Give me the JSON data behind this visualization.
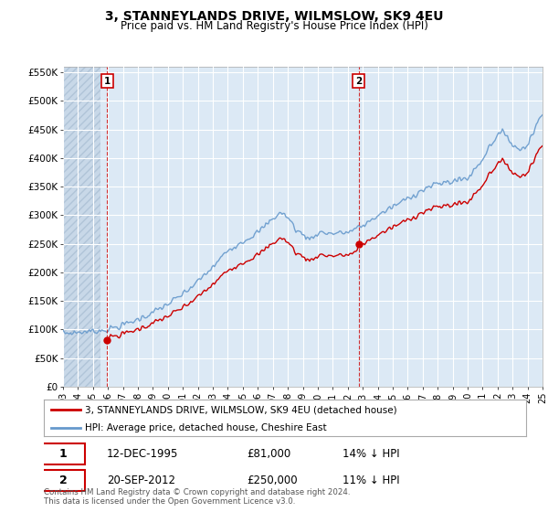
{
  "title": "3, STANNEYLANDS DRIVE, WILMSLOW, SK9 4EU",
  "subtitle": "Price paid vs. HM Land Registry's House Price Index (HPI)",
  "legend_label_red": "3, STANNEYLANDS DRIVE, WILMSLOW, SK9 4EU (detached house)",
  "legend_label_blue": "HPI: Average price, detached house, Cheshire East",
  "annotation1_date": "12-DEC-1995",
  "annotation1_price": "£81,000",
  "annotation1_hpi": "14% ↓ HPI",
  "annotation2_date": "20-SEP-2012",
  "annotation2_price": "£250,000",
  "annotation2_hpi": "11% ↓ HPI",
  "footnote": "Contains HM Land Registry data © Crown copyright and database right 2024.\nThis data is licensed under the Open Government Licence v3.0.",
  "ylim": [
    0,
    560000
  ],
  "yticks": [
    0,
    50000,
    100000,
    150000,
    200000,
    250000,
    300000,
    350000,
    400000,
    450000,
    500000,
    550000
  ],
  "ytick_labels": [
    "£0",
    "£50K",
    "£100K",
    "£150K",
    "£200K",
    "£250K",
    "£300K",
    "£350K",
    "£400K",
    "£450K",
    "£500K",
    "£550K"
  ],
  "background_color": "#ffffff",
  "plot_bg_color": "#dce9f5",
  "hatch_color": "#c8d8e8",
  "grid_color": "#ffffff",
  "red_color": "#cc0000",
  "blue_color": "#6699cc",
  "sale1_x": 1995.95,
  "sale1_y": 81000,
  "sale2_x": 2012.72,
  "sale2_y": 250000,
  "vline1_x": 1995.95,
  "vline2_x": 2012.72,
  "xmin": 1993.0,
  "xmax": 2025.0
}
